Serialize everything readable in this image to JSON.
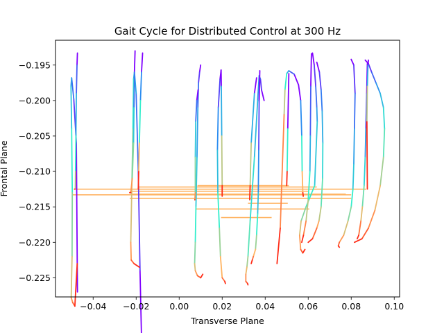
{
  "chart_data": {
    "type": "line",
    "title": "Gait Cycle for Distributed Control at 300 Hz",
    "xlabel": "Transverse Plane",
    "ylabel": "Frontal Plane",
    "xlim": [
      -0.0575,
      0.1025
    ],
    "ylim": [
      -0.2277,
      -0.1915
    ],
    "xticks": [
      -0.04,
      -0.02,
      0.0,
      0.02,
      0.04,
      0.06,
      0.08,
      0.1
    ],
    "xtick_labels": [
      "−0.04",
      "−0.02",
      "0.00",
      "0.02",
      "0.04",
      "0.06",
      "0.08",
      "0.10"
    ],
    "yticks": [
      -0.195,
      -0.2,
      -0.205,
      -0.21,
      -0.215,
      -0.22,
      -0.225
    ],
    "ytick_labels": [
      "−0.195",
      "−0.200",
      "−0.205",
      "−0.210",
      "−0.215",
      "−0.220",
      "−0.225"
    ],
    "grid": false,
    "legend": "none",
    "colormap": "rainbow (time along each trajectory)",
    "colors": {
      "stroke_start": "#7f00ff",
      "stroke_early": "#2a8cf0",
      "stroke_mid": "#33eecc",
      "stroke_late": "#ffb360",
      "stroke_end": "#ff2a15",
      "transfer_line": "#ffb464"
    },
    "series": [
      {
        "x": [
          -0.0473,
          -0.0478,
          -0.049,
          -0.05,
          -0.0503,
          -0.05,
          -0.0497,
          -0.0498,
          -0.0502,
          -0.0495,
          -0.0485,
          -0.0474
        ],
        "y": [
          -0.227,
          -0.206,
          -0.1998,
          -0.1968,
          -0.198,
          -0.204,
          -0.213,
          -0.222,
          -0.2278,
          -0.2285,
          -0.229,
          -0.223
        ]
      },
      {
        "x": [
          -0.0473,
          -0.0475,
          -0.0478,
          -0.048,
          -0.0482,
          -0.0483,
          -0.0485,
          -0.0487
        ],
        "y": [
          -0.1933,
          -0.195,
          -0.199,
          -0.205,
          -0.21,
          -0.2125,
          -0.2125,
          -0.2125
        ]
      },
      {
        "x": [
          -0.0175,
          -0.0182,
          -0.019,
          -0.02,
          -0.0208,
          -0.0212,
          -0.0215,
          -0.022,
          -0.0225,
          -0.0223,
          -0.021,
          -0.0185
        ],
        "y": [
          -0.2335,
          -0.224,
          -0.21,
          -0.199,
          -0.196,
          -0.197,
          -0.204,
          -0.212,
          -0.22,
          -0.2225,
          -0.223,
          -0.2235
        ]
      },
      {
        "x": [
          -0.0205,
          -0.0208,
          -0.021,
          -0.0212,
          -0.0218,
          -0.0225,
          -0.023
        ],
        "y": [
          -0.193,
          -0.196,
          -0.201,
          -0.206,
          -0.211,
          -0.213,
          -0.213
        ]
      },
      {
        "x": [
          -0.017,
          -0.0175,
          -0.018,
          -0.0185,
          -0.0188,
          -0.019
        ],
        "y": [
          -0.1933,
          -0.196,
          -0.2,
          -0.206,
          -0.21,
          -0.2125
        ]
      },
      {
        "x": [
          0.01,
          0.0095,
          0.009,
          0.0087,
          0.0083,
          0.0078,
          0.0075,
          0.0072,
          0.0075,
          0.0085,
          0.01,
          0.011
        ],
        "y": [
          -0.195,
          -0.196,
          -0.1975,
          -0.201,
          -0.208,
          -0.215,
          -0.22,
          -0.223,
          -0.224,
          -0.2247,
          -0.225,
          -0.2245
        ]
      },
      {
        "x": [
          0.0088,
          0.0082,
          0.0077,
          0.0075,
          0.0075,
          0.0073,
          0.0073
        ],
        "y": [
          -0.1985,
          -0.2,
          -0.203,
          -0.208,
          -0.213,
          -0.214,
          -0.214
        ]
      },
      {
        "x": [
          0.0195,
          0.019,
          0.0182,
          0.0178,
          0.018,
          0.0187,
          0.0192,
          0.02,
          0.0212,
          0.0215
        ],
        "y": [
          -0.1957,
          -0.197,
          -0.201,
          -0.207,
          -0.213,
          -0.218,
          -0.222,
          -0.225,
          -0.2255,
          -0.2258
        ]
      },
      {
        "x": [
          0.0195,
          0.0196,
          0.0198,
          0.02,
          0.02
        ],
        "y": [
          -0.1957,
          -0.198,
          -0.205,
          -0.212,
          -0.2135
        ]
      },
      {
        "x": [
          0.0395,
          0.0383,
          0.0378,
          0.0372,
          0.0365,
          0.035,
          0.033,
          0.032,
          0.0315,
          0.031,
          0.031,
          0.0318,
          0.032
        ],
        "y": [
          -0.2,
          -0.1985,
          -0.197,
          -0.1965,
          -0.2,
          -0.208,
          -0.217,
          -0.222,
          -0.2235,
          -0.2245,
          -0.2255,
          -0.2258,
          -0.226
        ]
      },
      {
        "x": [
          0.036,
          0.035,
          0.0335,
          0.033,
          0.0328
        ],
        "y": [
          -0.1968,
          -0.199,
          -0.206,
          -0.212,
          -0.214
        ]
      },
      {
        "x": [
          0.0375,
          0.0372,
          0.037,
          0.0368,
          0.0365,
          0.036,
          0.0355,
          0.0345,
          0.034,
          0.0335
        ],
        "y": [
          -0.1958,
          -0.2,
          -0.207,
          -0.213,
          -0.216,
          -0.219,
          -0.221,
          -0.222,
          -0.2225,
          -0.223
        ]
      },
      {
        "x": [
          0.0555,
          0.0535,
          0.051,
          0.05,
          0.0492,
          0.0488,
          0.047,
          0.0455
        ],
        "y": [
          -0.1978,
          -0.1963,
          -0.1958,
          -0.1962,
          -0.1985,
          -0.202,
          -0.218,
          -0.223
        ]
      },
      {
        "x": [
          0.051,
          0.0505,
          0.0502,
          0.05
        ],
        "y": [
          -0.1962,
          -0.204,
          -0.21,
          -0.212
        ]
      },
      {
        "x": [
          0.0555,
          0.0565,
          0.057,
          0.0572,
          0.0575,
          0.0577
        ],
        "y": [
          -0.1978,
          -0.2,
          -0.205,
          -0.21,
          -0.213,
          -0.2135
        ]
      },
      {
        "x": [
          0.062,
          0.0628,
          0.0635,
          0.064,
          0.0642,
          0.063,
          0.059,
          0.0567,
          0.056,
          0.0565,
          0.0575,
          0.0585
        ],
        "y": [
          -0.1933,
          -0.195,
          -0.198,
          -0.201,
          -0.203,
          -0.212,
          -0.215,
          -0.217,
          -0.219,
          -0.221,
          -0.2215,
          -0.221
        ]
      },
      {
        "x": [
          0.0615,
          0.0612,
          0.061,
          0.0608,
          0.06,
          0.059,
          0.0578,
          0.057
        ],
        "y": [
          -0.1934,
          -0.198,
          -0.205,
          -0.21,
          -0.214,
          -0.217,
          -0.219,
          -0.22
        ]
      },
      {
        "x": [
          0.064,
          0.0652,
          0.066,
          0.0665,
          0.0668,
          0.0667,
          0.066,
          0.065,
          0.064,
          0.062,
          0.06
        ],
        "y": [
          -0.1946,
          -0.196,
          -0.1985,
          -0.2015,
          -0.206,
          -0.211,
          -0.215,
          -0.217,
          -0.218,
          -0.2195,
          -0.22
        ]
      },
      {
        "x": [
          0.08,
          0.0812,
          0.0818,
          0.0815,
          0.0812,
          0.0808,
          0.08,
          0.0785,
          0.0765,
          0.0745,
          0.074,
          0.0745
        ],
        "y": [
          -0.1942,
          -0.195,
          -0.199,
          -0.204,
          -0.209,
          -0.2125,
          -0.215,
          -0.217,
          -0.219,
          -0.22,
          -0.2205,
          -0.2207
        ]
      },
      {
        "x": [
          0.0865,
          0.088,
          0.0895,
          0.0915,
          0.0935,
          0.095,
          0.0955,
          0.095,
          0.0935,
          0.091,
          0.088,
          0.085,
          0.0815
        ],
        "y": [
          -0.1943,
          -0.1948,
          -0.196,
          -0.1975,
          -0.199,
          -0.201,
          -0.204,
          -0.208,
          -0.212,
          -0.2155,
          -0.218,
          -0.2195,
          -0.22
        ]
      },
      {
        "x": [
          0.0875,
          0.0872,
          0.0868,
          0.0865,
          0.086,
          0.0852,
          0.0845,
          0.0835,
          0.0828
        ],
        "y": [
          -0.1948,
          -0.199,
          -0.204,
          -0.208,
          -0.212,
          -0.215,
          -0.217,
          -0.219,
          -0.2195
        ]
      },
      {
        "x": [
          0.088,
          0.0878,
          0.0875,
          0.0873,
          0.0875
        ],
        "y": [
          -0.1943,
          -0.195,
          -0.198,
          -0.203,
          -0.2125
        ]
      }
    ],
    "transfer_lines": [
      {
        "x": [
          -0.048,
          0.087
        ],
        "y": [
          -0.2125,
          -0.2125
        ]
      },
      {
        "x": [
          -0.0495,
          0.08
        ],
        "y": [
          -0.2133,
          -0.2133
        ]
      },
      {
        "x": [
          -0.023,
          0.06
        ],
        "y": [
          -0.2128,
          -0.2128
        ]
      },
      {
        "x": [
          -0.0225,
          0.0775
        ],
        "y": [
          -0.2132,
          -0.2132
        ]
      },
      {
        "x": [
          -0.023,
          0.08
        ],
        "y": [
          -0.2138,
          -0.2138
        ]
      },
      {
        "x": [
          -0.019,
          0.064
        ],
        "y": [
          -0.2122,
          -0.2122
        ]
      },
      {
        "x": [
          0.0085,
          0.051
        ],
        "y": [
          -0.212,
          -0.212
        ]
      },
      {
        "x": [
          0.0075,
          0.0605
        ],
        "y": [
          -0.2153,
          -0.2153
        ]
      },
      {
        "x": [
          0.0195,
          0.043
        ],
        "y": [
          -0.2165,
          -0.2165
        ]
      },
      {
        "x": [
          0.032,
          0.0505
        ],
        "y": [
          -0.2145,
          -0.2145
        ]
      }
    ]
  }
}
